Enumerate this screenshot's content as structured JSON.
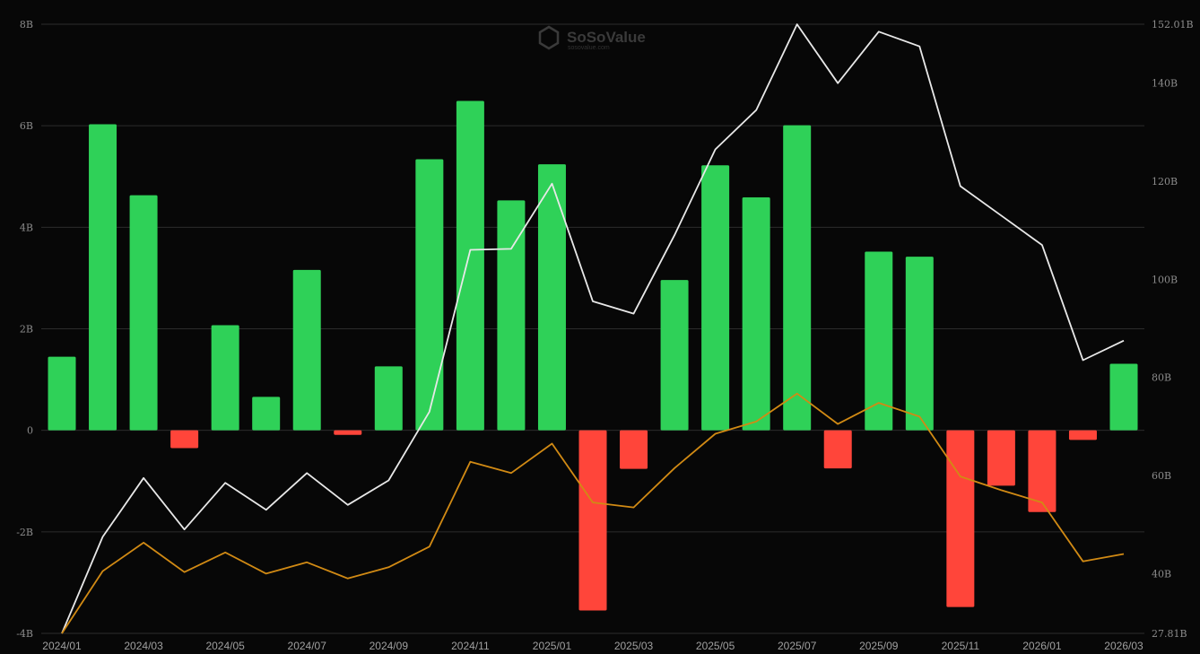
{
  "watermark": {
    "name": "SoSoValue",
    "sub": "sosovalue.com"
  },
  "colors": {
    "background": "#070707",
    "grid": "#2c2c2c",
    "positive_bar": "#2fd158",
    "negative_bar": "#ff453a",
    "total_line": "#e8e8e8",
    "secondary_line": "#d18a14"
  },
  "chart_data": {
    "type": "bar",
    "x": [
      "2024/01",
      "2024/02",
      "2024/03",
      "2024/04",
      "2024/05",
      "2024/06",
      "2024/07",
      "2024/08",
      "2024/09",
      "2024/10",
      "2024/11",
      "2024/12",
      "2025/01",
      "2025/02",
      "2025/03",
      "2025/04",
      "2025/05",
      "2025/06",
      "2025/07",
      "2025/08",
      "2025/09",
      "2025/10",
      "2025/11",
      "2025/12",
      "2026/01",
      "2026/02",
      "2026/03"
    ],
    "x_tick_labels": [
      "2024/01",
      "2024/03",
      "2024/05",
      "2024/07",
      "2024/09",
      "2024/11",
      "2025/01",
      "2025/03",
      "2025/05",
      "2025/07",
      "2025/09",
      "2025/11",
      "2026/01",
      "2026/03"
    ],
    "left_axis": {
      "ticks": [
        "8B",
        "6B",
        "4B",
        "2B",
        "0",
        "-2B",
        "-4B"
      ],
      "range": [
        -4,
        8
      ],
      "unit": "B"
    },
    "right_axis": {
      "ticks": [
        "152.01B",
        "140B",
        "120B",
        "100B",
        "80B",
        "60B",
        "40B",
        "27.81B"
      ],
      "range": [
        27.81,
        152.01
      ],
      "unit": "B"
    },
    "series": [
      {
        "values": [
          1.45,
          6.03,
          4.63,
          -0.35,
          2.07,
          0.66,
          3.16,
          -0.09,
          1.26,
          5.34,
          6.49,
          4.53,
          5.24,
          -3.55,
          -0.76,
          2.96,
          5.22,
          4.59,
          6.01,
          -0.75,
          3.52,
          3.42,
          -3.48,
          -1.09,
          -1.61,
          -0.19,
          1.31
        ],
        "axis": "left",
        "mark": "bar"
      },
      {
        "values": [
          27.81,
          47.5,
          59.5,
          49.0,
          58.5,
          53.0,
          60.5,
          54.0,
          59.0,
          73.0,
          106.0,
          106.2,
          119.5,
          95.5,
          93.0,
          109.0,
          126.5,
          134.5,
          152.0,
          140.0,
          150.5,
          147.5,
          119.0,
          113.0,
          107.0,
          83.5,
          87.5
        ],
        "axis": "right",
        "mark": "line"
      },
      {
        "values": [
          27.81,
          40.5,
          46.3,
          40.3,
          44.3,
          40.0,
          42.3,
          39.0,
          41.3,
          45.5,
          62.8,
          60.5,
          66.5,
          54.5,
          53.5,
          61.5,
          68.5,
          71.0,
          76.7,
          70.5,
          74.8,
          72.0,
          59.8,
          57.0,
          54.5,
          42.5,
          44.0
        ],
        "axis": "right",
        "mark": "line"
      }
    ]
  }
}
